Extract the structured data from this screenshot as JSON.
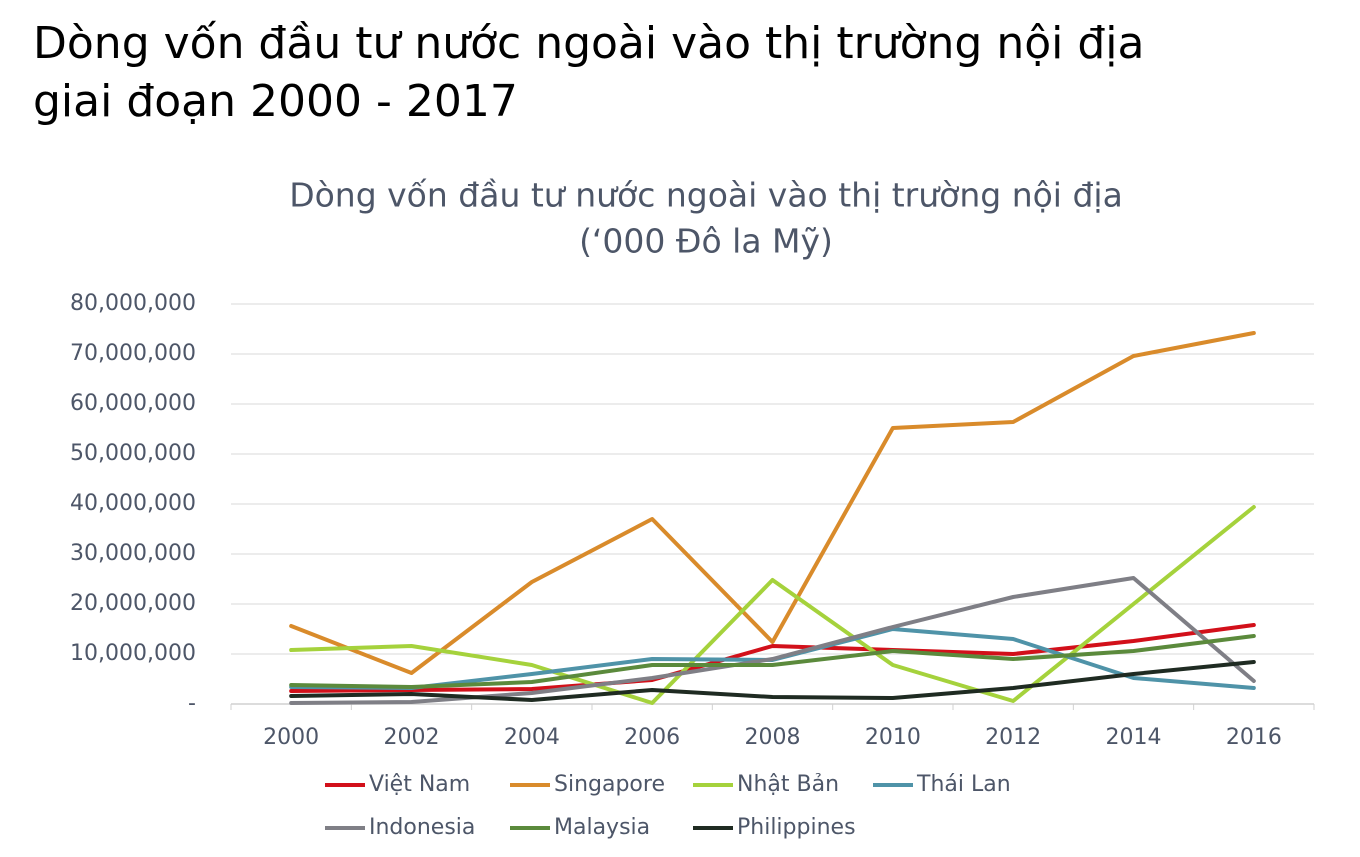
{
  "heading": [
    "Dòng vốn đầu tư nước ngoài vào thị trường nội địa",
    "giai đoạn 2000 - 2017"
  ],
  "chart_data": {
    "type": "line",
    "title": "Dòng vốn đầu tư nước ngoài vào thị trường nội địa",
    "subtitle": "(‘000 Đô la Mỹ)",
    "categories": [
      "2000",
      "2002",
      "2004",
      "2006",
      "2008",
      "2010",
      "2012",
      "2014",
      "2016"
    ],
    "series": [
      {
        "name": "Việt Nam",
        "color": "#d2101a",
        "values": [
          2600000,
          2800000,
          3000000,
          4800000,
          11600000,
          10800000,
          10000000,
          12600000,
          15800000
        ]
      },
      {
        "name": "Singapore",
        "color": "#d98b2b",
        "values": [
          15600000,
          6200000,
          24400000,
          37000000,
          12400000,
          55200000,
          56400000,
          69600000,
          74200000
        ]
      },
      {
        "name": "Nhật Bản",
        "color": "#a5d23c",
        "values": [
          10800000,
          11600000,
          7800000,
          200000,
          24800000,
          7800000,
          600000,
          20000000,
          39400000
        ]
      },
      {
        "name": "Thái Lan",
        "color": "#4f93a8",
        "values": [
          3400000,
          3200000,
          6000000,
          9000000,
          8800000,
          15000000,
          13000000,
          5200000,
          3200000
        ]
      },
      {
        "name": "Indonesia",
        "color": "#7f7f86",
        "values": [
          200000,
          400000,
          2200000,
          5200000,
          9000000,
          15400000,
          21400000,
          25200000,
          4600000
        ]
      },
      {
        "name": "Malaysia",
        "color": "#5b8a3c",
        "values": [
          3800000,
          3400000,
          4400000,
          7800000,
          7800000,
          10600000,
          9000000,
          10600000,
          13600000
        ]
      },
      {
        "name": "Philippines",
        "color": "#1f2b22",
        "values": [
          1600000,
          2000000,
          800000,
          2800000,
          1400000,
          1200000,
          3200000,
          6000000,
          8400000
        ]
      }
    ],
    "ylim": [
      0,
      80000000
    ],
    "yticks": [
      {
        "value": 0,
        "label": "-"
      },
      {
        "value": 10000000,
        "label": "10,000,000"
      },
      {
        "value": 20000000,
        "label": "20,000,000"
      },
      {
        "value": 30000000,
        "label": "30,000,000"
      },
      {
        "value": 40000000,
        "label": "40,000,000"
      },
      {
        "value": 50000000,
        "label": "50,000,000"
      },
      {
        "value": 60000000,
        "label": "60,000,000"
      },
      {
        "value": 70000000,
        "label": "70,000,000"
      },
      {
        "value": 80000000,
        "label": "80,000,000"
      }
    ],
    "grid": true,
    "legend": "bottom"
  }
}
